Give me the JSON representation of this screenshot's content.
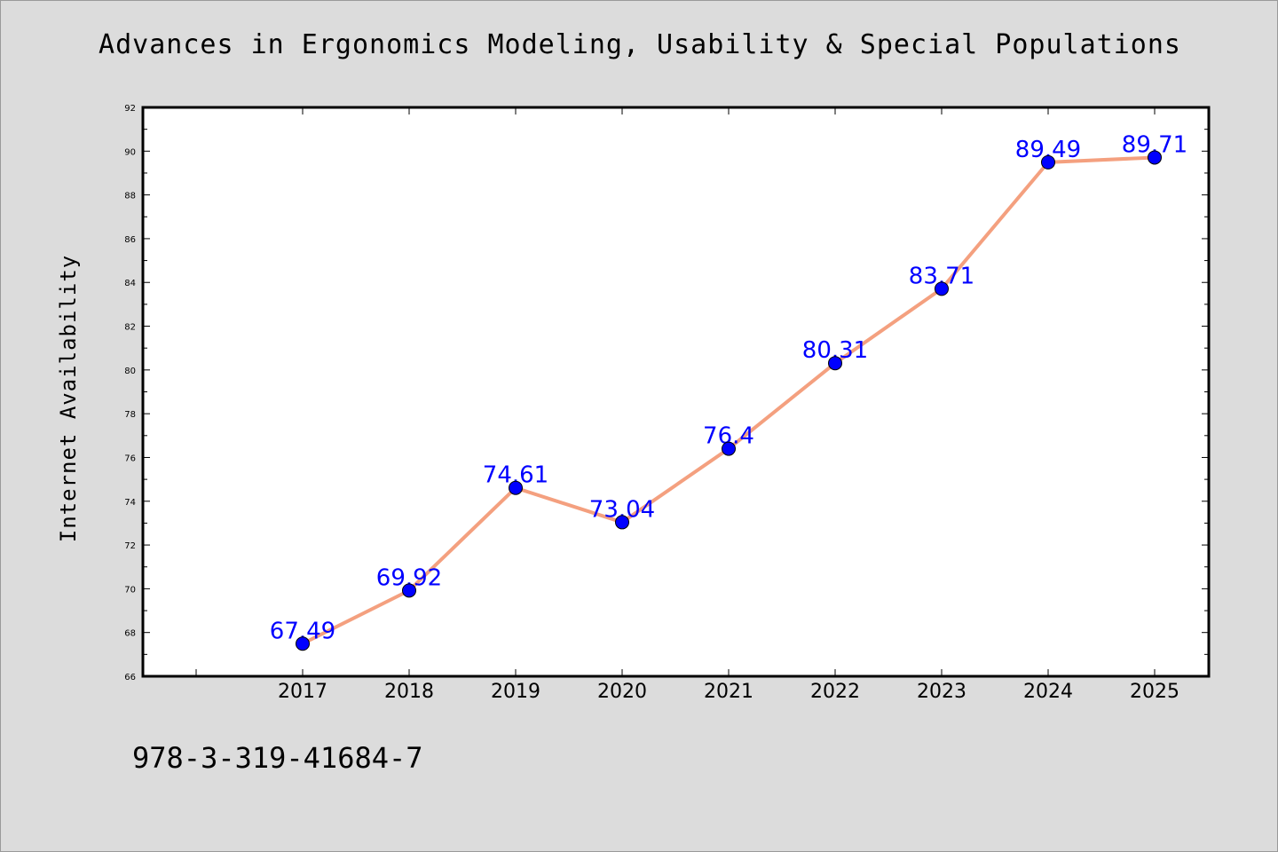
{
  "chart_data": {
    "type": "line",
    "title": "Advances in Ergonomics Modeling, Usability & Special Populations",
    "xlabel": "",
    "ylabel": "Internet Availability",
    "x": [
      "2017",
      "2018",
      "2019",
      "2020",
      "2021",
      "2022",
      "2023",
      "2024",
      "2025"
    ],
    "series": [
      {
        "values": [
          67.49,
          69.92,
          74.61,
          73.04,
          76.4,
          80.31,
          83.71,
          89.49,
          89.71
        ],
        "labels": [
          "67.49",
          "69.92",
          "74.61",
          "73.04",
          "76.4",
          "80.31",
          "83.71",
          "89.49",
          "89.71"
        ]
      }
    ],
    "ylim": [
      66,
      92
    ],
    "y_ticks": [
      66,
      68,
      70,
      72,
      74,
      76,
      78,
      80,
      82,
      84,
      86,
      88,
      90,
      92
    ],
    "grid": false,
    "legend": "none",
    "colors": {
      "line": "#f4a07f",
      "marker": "#0000ff",
      "data_label": "#0000ff",
      "background": "#dcdcdc",
      "plot_background": "#ffffff"
    }
  },
  "footer": {
    "isbn": "978-3-319-41684-7"
  }
}
